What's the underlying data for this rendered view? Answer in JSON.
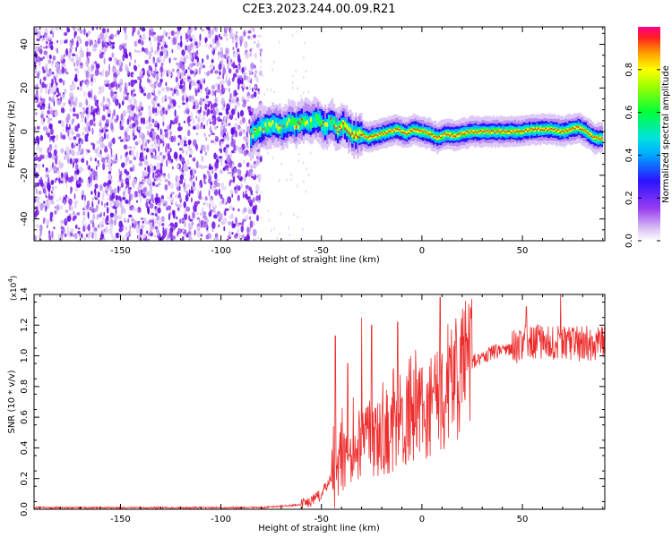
{
  "title": "C2E3.2023.244.00.09.R21",
  "chart_data": [
    {
      "type": "heatmap",
      "xlabel": "Height of straight line (km)",
      "ylabel": "Frequency (Hz)",
      "xlim": [
        -193,
        91
      ],
      "ylim": [
        -50,
        48
      ],
      "xticks": [
        -150,
        -100,
        -50,
        0,
        50
      ],
      "yticks": [
        -40,
        -20,
        0,
        20,
        40
      ],
      "noise_region_x": [
        -193,
        -80
      ],
      "ridge": {
        "x": [
          -85,
          -82,
          -78,
          -74,
          -70,
          -66,
          -62,
          -58,
          -55,
          -52,
          -48,
          -45,
          -42,
          -39,
          -36,
          -33,
          -30,
          -27,
          -24,
          -20,
          -16,
          -12,
          -8,
          -4,
          0,
          4,
          8,
          12,
          16,
          20,
          25,
          30,
          35,
          40,
          45,
          50,
          55,
          60,
          65,
          70,
          74,
          78,
          82,
          86,
          90
        ],
        "y": [
          -2,
          1,
          2,
          3,
          2,
          4,
          3,
          5,
          4,
          6,
          2,
          5,
          1,
          3,
          0,
          -2,
          -1,
          -3,
          -2,
          -1,
          0,
          1,
          -1,
          1,
          0,
          -1,
          -3,
          -1,
          -2,
          -1,
          0,
          0,
          0,
          0,
          0,
          0,
          1,
          1,
          1,
          0,
          1,
          2,
          0,
          -3,
          -3
        ]
      },
      "colorbar": {
        "label": "Normalized spectral amplitude",
        "range": [
          0,
          1
        ],
        "ticks": [
          "0.0",
          "0.2",
          "0.4",
          "0.6",
          "0.8"
        ]
      }
    },
    {
      "type": "line",
      "xlabel": "Height of straight line (km)",
      "ylabel": "SNR (10 * v/v)",
      "yscale_label": "(x10",
      "yscale_exp": "4",
      "yscale_close": ")",
      "xlim": [
        -193,
        91
      ],
      "ylim": [
        0,
        1.4
      ],
      "xticks": [
        -150,
        -100,
        -50,
        0,
        50
      ],
      "yticks": [
        "0.0",
        "0.2",
        "0.4",
        "0.6",
        "0.8",
        "1.0",
        "1.2",
        "1.4"
      ],
      "color": "#ee2b2b",
      "series": [
        {
          "x": [
            -193,
            -150,
            -100,
            -80,
            -70,
            -60,
            -55,
            -50,
            -45,
            -42,
            -40,
            -35,
            -30,
            -25,
            -20,
            -15,
            -10,
            -5,
            0,
            5,
            10,
            15,
            20,
            25,
            30,
            40,
            50,
            55,
            60,
            70,
            80,
            91
          ],
          "y": [
            0.01,
            0.01,
            0.01,
            0.01,
            0.02,
            0.03,
            0.05,
            0.1,
            0.2,
            0.22,
            0.3,
            0.35,
            0.42,
            0.45,
            0.48,
            0.52,
            0.55,
            0.6,
            0.62,
            0.66,
            0.7,
            0.8,
            0.88,
            0.96,
            1.0,
            1.04,
            1.08,
            1.1,
            1.1,
            1.08,
            1.08,
            1.07
          ]
        }
      ],
      "spikes": [
        {
          "x": -43,
          "y": 1.13
        },
        {
          "x": -37,
          "y": 0.95
        },
        {
          "x": -30,
          "y": 1.25
        },
        {
          "x": -25,
          "y": 1.2
        },
        {
          "x": -12,
          "y": 1.22
        },
        {
          "x": 9,
          "y": 1.38
        },
        {
          "x": 52,
          "y": 1.32
        },
        {
          "x": 69,
          "y": 1.4
        }
      ]
    }
  ]
}
